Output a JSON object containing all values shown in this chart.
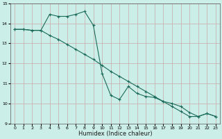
{
  "xlabel": "Humidex (Indice chaleur)",
  "bg_color": "#cceee8",
  "grid_color": "#c8a8a8",
  "line_color": "#1a6b5a",
  "line1_x": [
    0,
    1,
    2,
    3,
    4,
    5,
    6,
    7,
    8,
    9,
    10,
    11,
    12,
    13,
    14,
    15,
    16,
    17,
    18,
    19,
    20,
    21,
    22,
    23
  ],
  "line1_y": [
    13.7,
    13.7,
    13.65,
    13.65,
    13.4,
    13.2,
    12.95,
    12.7,
    12.45,
    12.2,
    11.9,
    11.6,
    11.35,
    11.1,
    10.85,
    10.6,
    10.35,
    10.1,
    9.85,
    9.6,
    9.35,
    9.35,
    9.5,
    9.35
  ],
  "line2_x": [
    0,
    1,
    2,
    3,
    4,
    5,
    6,
    7,
    8,
    9,
    10,
    11,
    12,
    13,
    14,
    15,
    16,
    17,
    18,
    19,
    20,
    21,
    22,
    23
  ],
  "line2_y": [
    13.7,
    13.7,
    13.65,
    13.65,
    14.45,
    14.35,
    14.35,
    14.45,
    14.6,
    13.9,
    11.5,
    10.4,
    10.2,
    10.85,
    10.5,
    10.35,
    10.3,
    10.1,
    10.0,
    9.85,
    9.55,
    9.35,
    9.5,
    9.35
  ],
  "ylim": [
    9.0,
    15.0
  ],
  "xlim": [
    -0.5,
    23.5
  ],
  "yticks": [
    9,
    10,
    11,
    12,
    13,
    14,
    15
  ],
  "xticks": [
    0,
    1,
    2,
    3,
    4,
    5,
    6,
    7,
    8,
    9,
    10,
    11,
    12,
    13,
    14,
    15,
    16,
    17,
    18,
    19,
    20,
    21,
    22,
    23
  ],
  "xlabel_fontsize": 6,
  "tick_fontsize": 4.5,
  "linewidth": 0.8,
  "markersize": 3
}
